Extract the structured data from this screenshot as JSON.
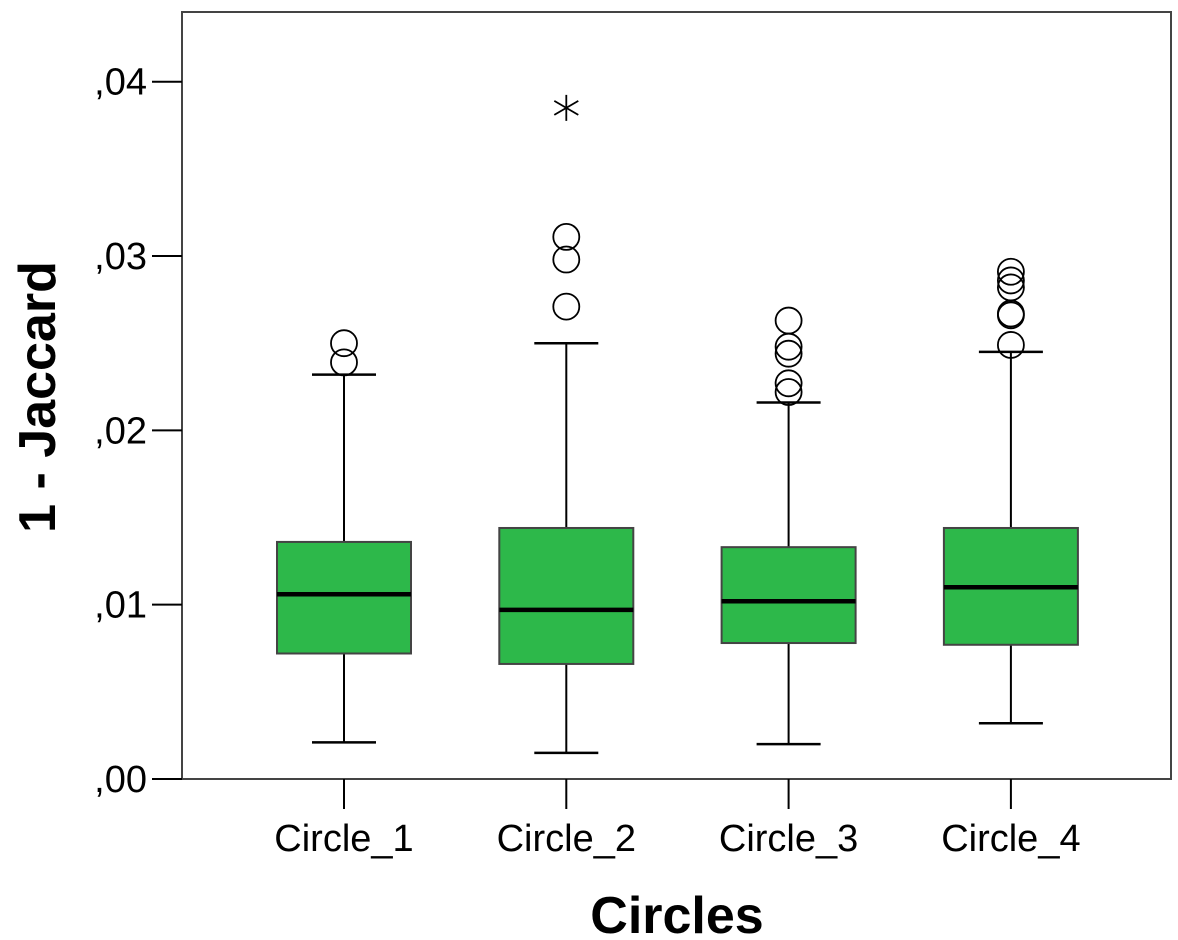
{
  "chart_data": {
    "type": "boxplot",
    "xlabel": "Circles",
    "ylabel": "1 - Jaccard",
    "ylim": [
      0,
      0.044
    ],
    "yticks": [
      {
        "value": 0.0,
        "label": ",00"
      },
      {
        "value": 0.01,
        "label": ",01"
      },
      {
        "value": 0.02,
        "label": ",02"
      },
      {
        "value": 0.03,
        "label": ",03"
      },
      {
        "value": 0.04,
        "label": ",04"
      }
    ],
    "grid": false,
    "box_color": "#2db84a",
    "categories": [
      "Circle_1",
      "Circle_2",
      "Circle_3",
      "Circle_4"
    ],
    "boxes": [
      {
        "category": "Circle_1",
        "whisker_low": 0.0021,
        "q1": 0.0072,
        "median": 0.0106,
        "q3": 0.0136,
        "whisker_high": 0.0232,
        "outliers": [
          0.0239,
          0.025
        ],
        "extremes": []
      },
      {
        "category": "Circle_2",
        "whisker_low": 0.0015,
        "q1": 0.0066,
        "median": 0.0097,
        "q3": 0.0144,
        "whisker_high": 0.025,
        "outliers": [
          0.0271,
          0.0298,
          0.0311
        ],
        "extremes": [
          0.0385
        ]
      },
      {
        "category": "Circle_3",
        "whisker_low": 0.002,
        "q1": 0.0078,
        "median": 0.0102,
        "q3": 0.0133,
        "whisker_high": 0.0216,
        "outliers": [
          0.0222,
          0.0227,
          0.0244,
          0.0248,
          0.0263
        ],
        "extremes": []
      },
      {
        "category": "Circle_4",
        "whisker_low": 0.0032,
        "q1": 0.0077,
        "median": 0.011,
        "q3": 0.0144,
        "whisker_high": 0.0245,
        "outliers": [
          0.0249,
          0.0266,
          0.0267,
          0.0282,
          0.0286,
          0.0291
        ],
        "extremes": []
      }
    ]
  }
}
